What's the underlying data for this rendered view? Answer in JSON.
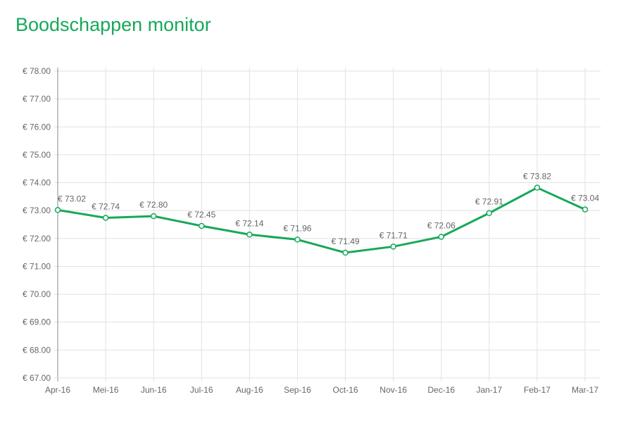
{
  "header": {
    "title": "Boodschappen monitor"
  },
  "colors": {
    "accent": "#17a85a",
    "grid": "#e1e1e1",
    "axis": "#888888",
    "label": "#666666"
  },
  "chart_data": {
    "type": "line",
    "title": "Boodschappen monitor",
    "xlabel": "",
    "ylabel": "",
    "categories": [
      "Apr-16",
      "Mei-16",
      "Jun-16",
      "Jul-16",
      "Aug-16",
      "Sep-16",
      "Oct-16",
      "Nov-16",
      "Dec-16",
      "Jan-17",
      "Feb-17",
      "Mar-17"
    ],
    "series": [
      {
        "name": "Boodschappen",
        "values": [
          73.02,
          72.74,
          72.8,
          72.45,
          72.14,
          71.96,
          71.49,
          71.71,
          72.06,
          72.91,
          73.82,
          73.04
        ]
      }
    ],
    "data_labels": [
      "€ 73.02",
      "€ 72.74",
      "€ 72.80",
      "€ 72.45",
      "€ 72.14",
      "€ 71.96",
      "€ 71.49",
      "€ 71.71",
      "€ 72.06",
      "€ 72.91",
      "€ 73.82",
      "€ 73.04"
    ],
    "yticks": [
      "€ 78.00",
      "€ 77.00",
      "€ 76.00",
      "€ 75.00",
      "€ 74.00",
      "€ 73.00",
      "€ 72.00",
      "€ 71.00",
      "€ 70.00",
      "€ 69.00",
      "€ 68.00",
      "€ 67.00"
    ],
    "ylim": [
      67,
      78
    ],
    "grid": true,
    "legend": "none"
  }
}
